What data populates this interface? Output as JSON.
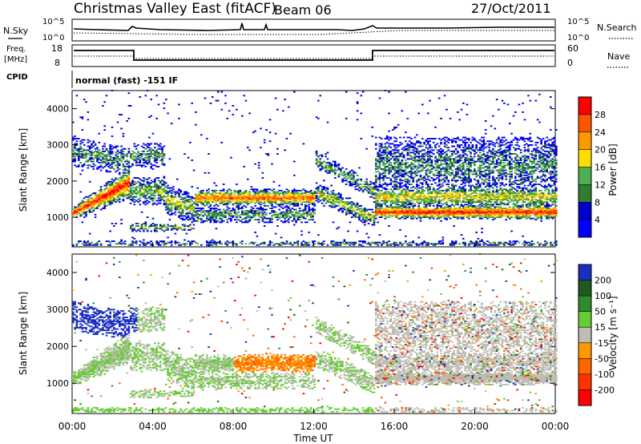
{
  "header": {
    "title": "Christmas Valley East (fitACF)",
    "beam": "Beam 06",
    "date": "27/Oct/2011"
  },
  "strips": {
    "nsky_label": "N.Sky",
    "nsky_ticks": [
      "10^5",
      "10^0"
    ],
    "nsearch_label": "N.Search",
    "nsearch_ticks": [
      "10^5",
      "10^0"
    ],
    "freq_label": "Freq.",
    "freq_unit": "[MHz]",
    "freq_ticks": [
      "18",
      "8"
    ],
    "nave_label": "Nave",
    "nave_ticks": [
      "60",
      "0"
    ],
    "cpid_label": "CPID",
    "cpid_text": "normal (fast) -151 IF"
  },
  "chart_data": [
    {
      "type": "heatmap",
      "name": "power",
      "ylabel": "Slant Range [km]",
      "xlabel": "",
      "x_ticks": [
        "00:00",
        "04:00",
        "08:00",
        "12:00",
        "16:00",
        "20:00",
        "00:00"
      ],
      "x_range_hours": [
        0,
        24
      ],
      "y_ticks": [
        1000,
        2000,
        3000,
        4000
      ],
      "y_range_km": [
        180,
        4500
      ],
      "colorbar_label": "Power [dB]",
      "colorbar_ticks": [
        "28",
        "24",
        "20",
        "16",
        "12",
        "8",
        "4"
      ],
      "colorbar_colors": [
        "#ff0000",
        "#ff5500",
        "#ff9900",
        "#ffdd00",
        "#4caf50",
        "#2e7d32",
        "#0000cc",
        "#0000ff"
      ]
    },
    {
      "type": "heatmap",
      "name": "velocity",
      "ylabel": "Slant Range [km]",
      "xlabel": "Time UT",
      "x_ticks": [
        "00:00",
        "04:00",
        "08:00",
        "12:00",
        "16:00",
        "20:00",
        "00:00"
      ],
      "x_range_hours": [
        0,
        24
      ],
      "y_ticks": [
        1000,
        2000,
        3000,
        4000
      ],
      "y_range_km": [
        180,
        4500
      ],
      "colorbar_label": "Velocity [m s⁻¹]",
      "colorbar_ticks": [
        "200",
        "100",
        "50",
        "15",
        "-15",
        "-50",
        "-100",
        "-200"
      ],
      "colorbar_colors": [
        "#1a2fbf",
        "#1e5a1e",
        "#2e8b2e",
        "#66cc33",
        "#bdbdb5",
        "#ff9900",
        "#ff6600",
        "#ff3300",
        "#ff0000"
      ]
    }
  ]
}
